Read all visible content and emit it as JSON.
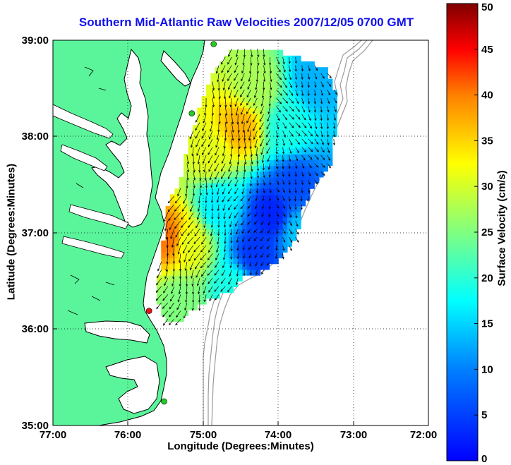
{
  "title": "Southern Mid-Atlantic Raw Velocities 2007/12/05 0700 GMT",
  "x_axis": {
    "label": "Longitude (Degrees:Minutes)",
    "ticks": [
      "77:00",
      "76:00",
      "75:00",
      "74:00",
      "73:00",
      "72:00"
    ],
    "range": [
      -77,
      -72
    ]
  },
  "y_axis": {
    "label": "Latitude (Degrees:Minutes)",
    "ticks": [
      "39:00",
      "38:00",
      "37:00",
      "36:00",
      "35:00"
    ],
    "range": [
      35,
      39
    ]
  },
  "colorbar": {
    "label": "Surface Velocity (cm/s)",
    "ticks": [
      "0",
      "5",
      "10",
      "15",
      "20",
      "25",
      "30",
      "35",
      "40",
      "45",
      "50"
    ],
    "range": [
      0,
      50
    ],
    "colormap": "jet"
  },
  "colors": {
    "land": "#5af59b",
    "water": "#ffffff",
    "title": "#1010ee",
    "bathymetry": "#9a9a9a",
    "coast": "#000000",
    "station_green": "#22cc22",
    "station_red": "#ee1111"
  },
  "grid": "dotted",
  "stations": [
    {
      "lon": -74.86,
      "lat": 38.96,
      "color": "green"
    },
    {
      "lon": -75.15,
      "lat": 38.24,
      "color": "green"
    },
    {
      "lon": -75.72,
      "lat": 36.19,
      "color": "red"
    },
    {
      "lon": -75.52,
      "lat": 35.25,
      "color": "green"
    }
  ],
  "chart_data": {
    "type": "heatmap",
    "variable": "surface velocity (cm/s)",
    "field_hotspots": [
      {
        "lon": -74.5,
        "lat": 38.1,
        "speed": 35
      },
      {
        "lon": -74.9,
        "lat": 37.8,
        "speed": 30
      },
      {
        "lon": -74.3,
        "lat": 38.5,
        "speed": 27
      },
      {
        "lon": -75.2,
        "lat": 36.9,
        "speed": 30
      },
      {
        "lon": -75.45,
        "lat": 36.95,
        "speed": 38
      },
      {
        "lon": -74.8,
        "lat": 37.3,
        "speed": 18
      },
      {
        "lon": -74.1,
        "lat": 37.2,
        "speed": 8
      },
      {
        "lon": -73.8,
        "lat": 37.5,
        "speed": 10
      },
      {
        "lon": -74.3,
        "lat": 36.8,
        "speed": 9
      },
      {
        "lon": -75.3,
        "lat": 36.3,
        "speed": 25
      },
      {
        "lon": -74.6,
        "lat": 36.4,
        "speed": 20
      },
      {
        "lon": -73.9,
        "lat": 38.1,
        "speed": 20
      },
      {
        "lon": -73.5,
        "lat": 38.6,
        "speed": 15
      },
      {
        "lon": -73.7,
        "lat": 37.0,
        "speed": 16
      }
    ],
    "arrows": "quiver of raw surface current vectors on the coverage grid"
  }
}
